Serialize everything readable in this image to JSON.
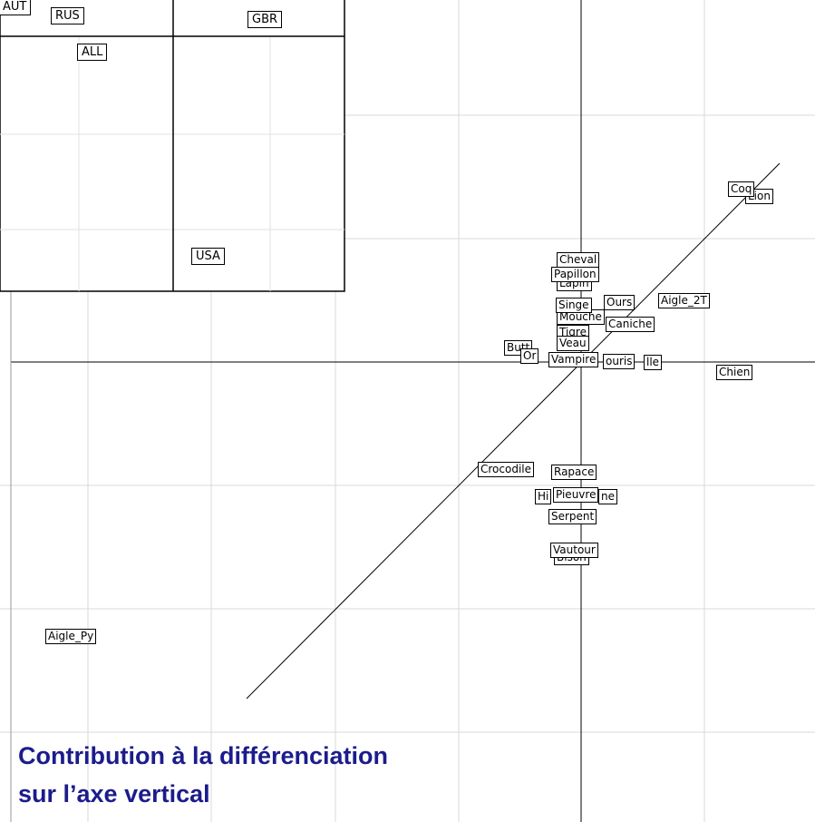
{
  "inset_labels": [
    "AUT",
    "RUS",
    "GBR",
    "ALL",
    "USA"
  ],
  "plot_labels": [
    "Bison",
    "Vautour",
    "Serpent",
    "Hi",
    "ne",
    "Pieuvre",
    "Crocodile",
    "Rapace",
    "Lion",
    "Coq",
    "Lapin",
    "Cheval",
    "Papillon",
    "Aigle_2T",
    "Ours",
    "Mouche",
    "Singe",
    "Caniche",
    "Tigre",
    "Butt",
    "Or",
    "lle",
    "ouris",
    "Veau",
    "Vampire",
    "Chien",
    "Aigle_Py"
  ],
  "caption": {
    "line1": "Contribution à la différenciation",
    "line2": "sur l’axe vertical"
  }
}
